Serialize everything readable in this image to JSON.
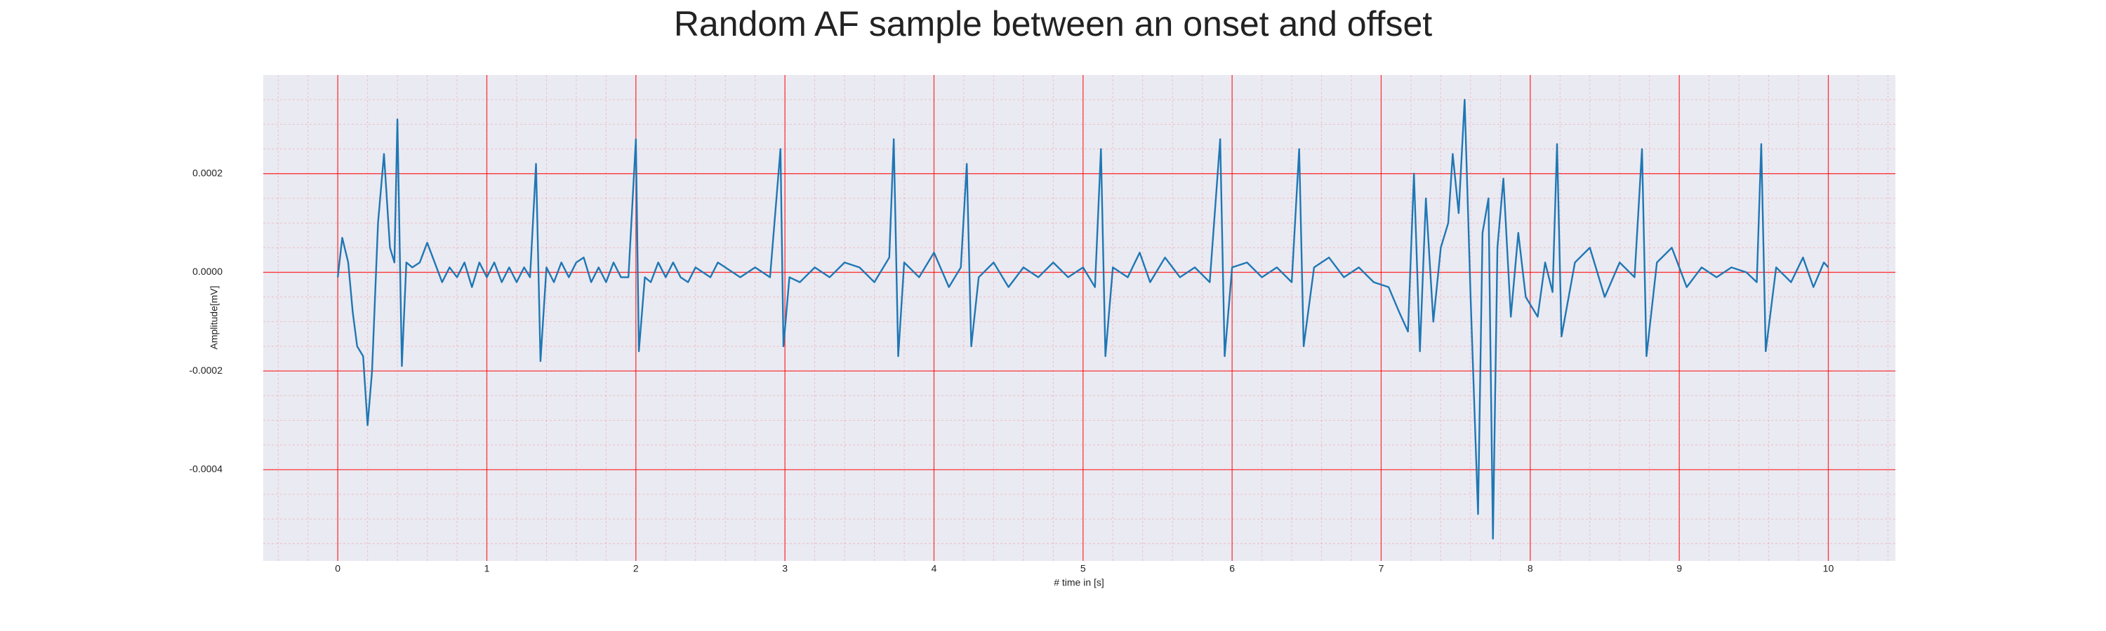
{
  "chart_data": {
    "type": "line",
    "title": "Random AF sample between an onset and offset",
    "x_label": "# time in [s]",
    "y_label": "Amplitude[mV]",
    "color": "#1f77b4",
    "grid": true,
    "grid_color": "#ff0000",
    "background": "#eaeaf2",
    "xlim": [
      -0.5,
      10.45
    ],
    "ylim": [
      -0.000585,
      0.0004
    ],
    "xticks": [
      0,
      1,
      2,
      3,
      4,
      5,
      6,
      7,
      8,
      9,
      10
    ],
    "yticks": [
      0.0002,
      {
        "value": 0,
        "label": "0.0000"
      },
      -0.0002,
      -0.0004
    ],
    "x": [
      0,
      0.03,
      0.07,
      0.1,
      0.13,
      0.17,
      0.2,
      0.23,
      0.27,
      0.31,
      0.35,
      0.38,
      0.4,
      0.43,
      0.46,
      0.5,
      0.55,
      0.6,
      0.65,
      0.7,
      0.75,
      0.8,
      0.85,
      0.9,
      0.95,
      1.0,
      1.05,
      1.1,
      1.15,
      1.2,
      1.25,
      1.29,
      1.33,
      1.36,
      1.4,
      1.45,
      1.5,
      1.55,
      1.6,
      1.65,
      1.7,
      1.75,
      1.8,
      1.85,
      1.9,
      1.95,
      2.0,
      2.02,
      2.06,
      2.1,
      2.15,
      2.2,
      2.25,
      2.3,
      2.35,
      2.4,
      2.5,
      2.55,
      2.6,
      2.7,
      2.8,
      2.9,
      2.97,
      2.99,
      3.03,
      3.1,
      3.2,
      3.3,
      3.4,
      3.5,
      3.6,
      3.7,
      3.73,
      3.76,
      3.8,
      3.9,
      4.0,
      4.1,
      4.18,
      4.22,
      4.25,
      4.3,
      4.4,
      4.5,
      4.6,
      4.7,
      4.8,
      4.9,
      5.0,
      5.08,
      5.12,
      5.15,
      5.2,
      5.3,
      5.38,
      5.45,
      5.55,
      5.65,
      5.75,
      5.85,
      5.92,
      5.95,
      6.0,
      6.1,
      6.2,
      6.3,
      6.4,
      6.45,
      6.48,
      6.55,
      6.65,
      6.75,
      6.85,
      6.95,
      7.05,
      7.12,
      7.18,
      7.22,
      7.26,
      7.3,
      7.35,
      7.4,
      7.45,
      7.48,
      7.52,
      7.56,
      7.6,
      7.65,
      7.68,
      7.72,
      7.75,
      7.78,
      7.82,
      7.87,
      7.92,
      7.97,
      8.05,
      8.1,
      8.15,
      8.18,
      8.21,
      8.3,
      8.4,
      8.5,
      8.6,
      8.7,
      8.75,
      8.78,
      8.85,
      8.95,
      9.05,
      9.15,
      9.25,
      9.35,
      9.45,
      9.52,
      9.55,
      9.58,
      9.65,
      9.75,
      9.83,
      9.9,
      9.97,
      10.0
    ],
    "values": [
      -1e-05,
      7e-05,
      2e-05,
      -8e-05,
      -0.00015,
      -0.00017,
      -0.00031,
      -0.0002,
      0.0001,
      0.00024,
      5e-05,
      2e-05,
      0.00031,
      -0.00019,
      2e-05,
      1e-05,
      2e-05,
      6e-05,
      2e-05,
      -2e-05,
      1e-05,
      -1e-05,
      2e-05,
      -3e-05,
      2e-05,
      -1e-05,
      2e-05,
      -2e-05,
      1e-05,
      -2e-05,
      1e-05,
      -1e-05,
      0.00022,
      -0.00018,
      1e-05,
      -2e-05,
      2e-05,
      -1e-05,
      2e-05,
      3e-05,
      -2e-05,
      1e-05,
      -2e-05,
      2e-05,
      -1e-05,
      -1e-05,
      0.00027,
      -0.00016,
      -1e-05,
      -2e-05,
      2e-05,
      -1e-05,
      2e-05,
      -1e-05,
      -2e-05,
      1e-05,
      -1e-05,
      2e-05,
      1e-05,
      -1e-05,
      1e-05,
      -1e-05,
      0.00025,
      -0.00015,
      -1e-05,
      -2e-05,
      1e-05,
      -1e-05,
      2e-05,
      1e-05,
      -2e-05,
      3e-05,
      0.00027,
      -0.00017,
      2e-05,
      -1e-05,
      4e-05,
      -3e-05,
      1e-05,
      0.00022,
      -0.00015,
      -1e-05,
      2e-05,
      -3e-05,
      1e-05,
      -1e-05,
      2e-05,
      -1e-05,
      1e-05,
      -3e-05,
      0.00025,
      -0.00017,
      1e-05,
      -1e-05,
      4e-05,
      -2e-05,
      3e-05,
      -1e-05,
      1e-05,
      -2e-05,
      0.00027,
      -0.00017,
      1e-05,
      2e-05,
      -1e-05,
      1e-05,
      -2e-05,
      0.00025,
      -0.00015,
      1e-05,
      3e-05,
      -1e-05,
      1e-05,
      -2e-05,
      -3e-05,
      -8e-05,
      -0.00012,
      0.0002,
      -0.00016,
      0.00015,
      -0.0001,
      5e-05,
      0.0001,
      0.00024,
      0.00012,
      0.00035,
      -5e-05,
      -0.00049,
      8e-05,
      0.00015,
      -0.00054,
      5e-05,
      0.00019,
      -9e-05,
      8e-05,
      -5e-05,
      -9e-05,
      2e-05,
      -4e-05,
      0.00026,
      -0.00013,
      2e-05,
      5e-05,
      -5e-05,
      2e-05,
      -1e-05,
      0.00025,
      -0.00017,
      2e-05,
      5e-05,
      -3e-05,
      1e-05,
      -1e-05,
      1e-05,
      0,
      -2e-05,
      0.00026,
      -0.00016,
      1e-05,
      -2e-05,
      3e-05,
      -3e-05,
      2e-05,
      1e-05
    ]
  }
}
